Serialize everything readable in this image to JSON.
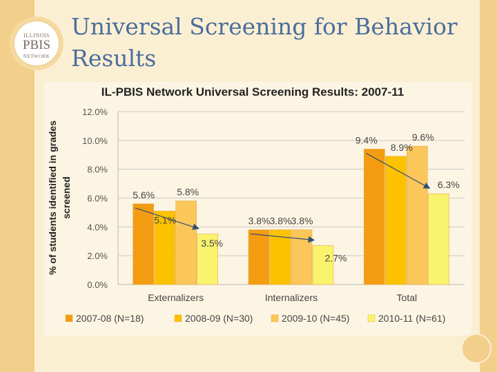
{
  "slide": {
    "title": "Universal Screening for Behavior Results",
    "logo": {
      "line1": "ILLINOIS",
      "line2": "PBIS",
      "line3": "NETWORK"
    }
  },
  "chart_data": {
    "type": "bar",
    "title": "IL-PBIS Network Universal Screening Results: 2007-11",
    "ylabel": "% of students identified in grades screened",
    "xlabel": "",
    "categories": [
      "Externalizers",
      "Internalizers",
      "Total"
    ],
    "ylim": [
      0,
      12
    ],
    "yticks": [
      "0.0%",
      "2.0%",
      "4.0%",
      "6.0%",
      "8.0%",
      "10.0%",
      "12.0%"
    ],
    "grid": true,
    "legend_position": "bottom",
    "series": [
      {
        "name": "2007-08 (N=18)",
        "color": "#f39c12",
        "values": [
          5.6,
          3.8,
          9.4
        ],
        "labels": [
          "5.6%",
          "3.8%",
          "9.4%"
        ]
      },
      {
        "name": "2008-09 (N=30)",
        "color": "#fcc200",
        "values": [
          5.1,
          3.8,
          8.9
        ],
        "labels": [
          "5.1%",
          "3.8%",
          "8.9%"
        ]
      },
      {
        "name": "2009-10 (N=45)",
        "color": "#fbc65a",
        "values": [
          5.8,
          3.8,
          9.6
        ],
        "labels": [
          "5.8%",
          "3.8%",
          "9.6%"
        ]
      },
      {
        "name": "2010-11 (N=61)",
        "color": "#faf36e",
        "values": [
          3.5,
          2.7,
          6.3
        ],
        "labels": [
          "3.5%",
          "2.7%",
          "6.3%"
        ]
      }
    ],
    "annotations": "trend arrows from 2007-08 bar to 2010-11 bar in each category"
  }
}
